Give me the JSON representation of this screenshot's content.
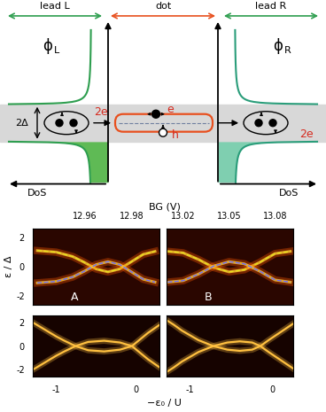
{
  "diagram": {
    "regions": [
      {
        "label": "lead L",
        "color": "#2e9e4f"
      },
      {
        "label": "dot",
        "color": "#e8501e"
      },
      {
        "label": "lead R",
        "color": "#2e9e4f"
      }
    ],
    "leads": [
      {
        "wavefunction": {
          "symbol": "ϕ",
          "subscript": "L"
        },
        "charge": "2e",
        "dos": "DoS",
        "color": "#2e9e4f",
        "fill": "#5fba55"
      },
      {
        "wavefunction": {
          "symbol": "ϕ",
          "subscript": "R"
        },
        "charge": "2e",
        "dos": "DoS",
        "color": "#2a9d7a",
        "fill": "#7fcfb0"
      }
    ],
    "gap_label": "2Δ",
    "electron_label": "e",
    "hole_label": "h"
  },
  "chart_data": [
    {
      "type": "line",
      "xlabel": "BG (V)",
      "ylabel": "ε / Δ",
      "annotations": [
        "A"
      ],
      "xlim": [
        12.938,
        12.992
      ],
      "xticks": [
        12.96,
        12.98
      ],
      "ylim": [
        -2.6,
        2.6
      ],
      "yticks": [
        -2,
        0,
        2
      ],
      "series": [
        {
          "color": "#e8e020",
          "line_style": "dashed",
          "x": [
            12.94,
            12.948,
            12.955,
            12.96,
            12.965,
            12.97,
            12.975,
            12.98,
            12.985,
            12.99
          ],
          "values": [
            1.1,
            1.0,
            0.7,
            0.3,
            -0.15,
            -0.35,
            -0.15,
            0.35,
            0.85,
            1.05
          ]
        },
        {
          "color": "#6a6aff",
          "line_style": "dashed",
          "x": [
            12.94,
            12.948,
            12.955,
            12.96,
            12.965,
            12.97,
            12.975,
            12.98,
            12.985,
            12.99
          ],
          "values": [
            -1.1,
            -1.0,
            -0.7,
            -0.3,
            0.15,
            0.35,
            0.15,
            -0.35,
            -0.85,
            -1.05
          ]
        }
      ]
    },
    {
      "type": "line",
      "annotations": [
        "B"
      ],
      "tick_labels": "x",
      "xlim": [
        13.009,
        13.092
      ],
      "xticks": [
        13.02,
        13.05,
        13.08
      ],
      "ylim": [
        -2.6,
        2.6
      ],
      "yticks": [
        -2,
        0,
        2
      ],
      "series": [
        {
          "color": "#e8e020",
          "line_style": "dashed",
          "x": [
            13.01,
            13.02,
            13.03,
            13.04,
            13.05,
            13.06,
            13.07,
            13.08,
            13.09
          ],
          "values": [
            1.05,
            0.95,
            0.5,
            -0.05,
            -0.35,
            -0.2,
            0.3,
            0.9,
            1.05
          ]
        },
        {
          "color": "#6a6aff",
          "line_style": "dashed",
          "x": [
            13.01,
            13.02,
            13.03,
            13.04,
            13.05,
            13.06,
            13.07,
            13.08,
            13.09
          ],
          "values": [
            -1.05,
            -0.95,
            -0.5,
            0.05,
            0.35,
            0.2,
            -0.3,
            -0.9,
            -1.05
          ]
        }
      ]
    },
    {
      "type": "line",
      "xlabel": "−ε₀ / U",
      "xlim": [
        -1.3,
        0.3
      ],
      "xticks": [
        -1,
        0
      ],
      "ylim": [
        -2.6,
        2.6
      ],
      "yticks": [
        -2,
        0,
        2
      ],
      "series": [
        {
          "color": "#ffc040",
          "line_style": "solid",
          "x": [
            -1.3,
            -1.2,
            -1.1,
            -1.0,
            -0.9,
            -0.76,
            -0.6,
            -0.4,
            -0.2,
            -0.05,
            0.05,
            0.15,
            0.3
          ],
          "values": [
            2.0,
            1.6,
            1.2,
            0.8,
            0.45,
            0.0,
            -0.35,
            -0.45,
            -0.3,
            0.0,
            0.55,
            1.1,
            1.8
          ]
        },
        {
          "color": "#ffc040",
          "line_style": "solid",
          "x": [
            -1.3,
            -1.2,
            -1.1,
            -1.0,
            -0.9,
            -0.76,
            -0.6,
            -0.4,
            -0.2,
            -0.05,
            0.05,
            0.15,
            0.3
          ],
          "values": [
            -2.0,
            -1.6,
            -1.2,
            -0.8,
            -0.45,
            0.0,
            0.35,
            0.45,
            0.3,
            0.0,
            -0.55,
            -1.1,
            -1.8
          ]
        }
      ]
    },
    {
      "type": "line",
      "tick_labels": "x",
      "xlim": [
        -1.29,
        0.25
      ],
      "xticks": [
        -1,
        0
      ],
      "ylim": [
        -2.6,
        2.6
      ],
      "yticks": [
        -2,
        0,
        2
      ],
      "series": [
        {
          "color": "#ffc040",
          "line_style": "solid",
          "x": [
            -1.29,
            -1.2,
            -1.1,
            -1.0,
            -0.9,
            -0.72,
            -0.55,
            -0.4,
            -0.25,
            -0.15,
            -0.05,
            0.1,
            0.25
          ],
          "values": [
            2.2,
            1.8,
            1.3,
            0.9,
            0.5,
            0.0,
            -0.3,
            -0.4,
            -0.3,
            0.0,
            0.5,
            1.2,
            1.9
          ]
        },
        {
          "color": "#ffc040",
          "line_style": "solid",
          "x": [
            -1.29,
            -1.2,
            -1.1,
            -1.0,
            -0.9,
            -0.72,
            -0.55,
            -0.4,
            -0.25,
            -0.15,
            -0.05,
            0.1,
            0.25
          ],
          "values": [
            -2.2,
            -1.8,
            -1.3,
            -0.9,
            -0.5,
            0.0,
            0.3,
            0.4,
            0.3,
            0.0,
            -0.5,
            -1.2,
            -1.9
          ]
        }
      ]
    }
  ]
}
